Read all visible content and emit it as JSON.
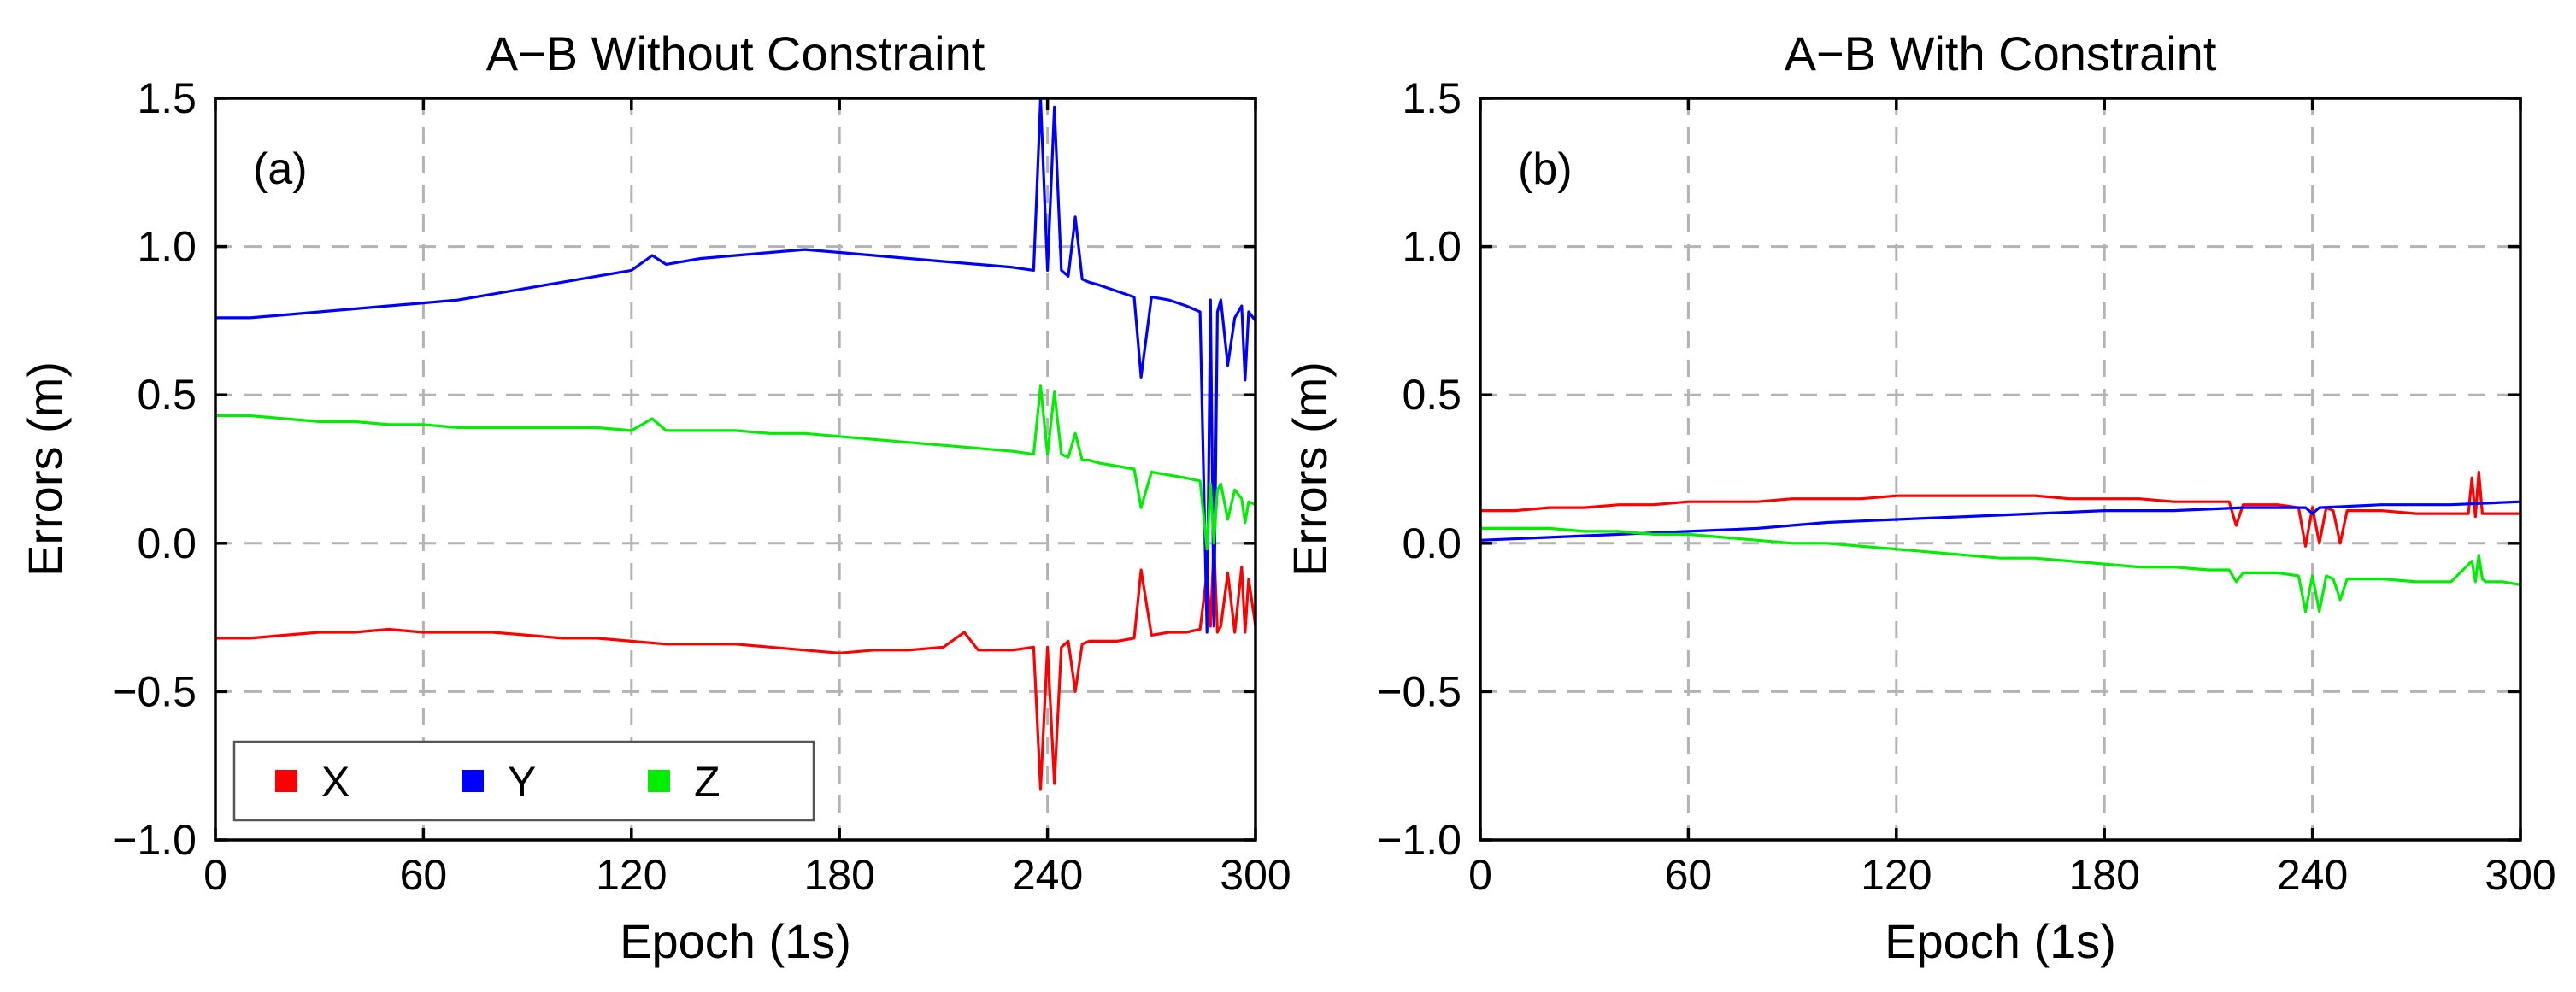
{
  "chart_data": [
    {
      "type": "line",
      "title": "A−B Without Constraint",
      "panel_label": "(a)",
      "xlabel": "Epoch (1s)",
      "ylabel": "Errors (m)",
      "xlim": [
        0,
        300
      ],
      "ylim": [
        -1.0,
        1.5
      ],
      "xticks": [
        0,
        60,
        120,
        180,
        240,
        300
      ],
      "xtick_labels": [
        "0",
        "60",
        "120",
        "180",
        "240",
        "300"
      ],
      "yticks": [
        -1.0,
        -0.5,
        0.0,
        0.5,
        1.0,
        1.5
      ],
      "ytick_labels": [
        "−1.0",
        "−0.5",
        "0.0",
        "0.5",
        "1.0",
        "1.5"
      ],
      "grid": true,
      "legend": {
        "position": "bottom-left",
        "entries": [
          {
            "label": "X",
            "color": "#ff0000"
          },
          {
            "label": "Y",
            "color": "#0000ff"
          },
          {
            "label": "Z",
            "color": "#00ee00"
          }
        ]
      },
      "series": [
        {
          "name": "X",
          "color": "#ff0000",
          "x": [
            0,
            10,
            20,
            30,
            40,
            50,
            60,
            70,
            80,
            90,
            100,
            110,
            120,
            130,
            140,
            150,
            160,
            170,
            180,
            190,
            200,
            210,
            216,
            220,
            230,
            236,
            238,
            240,
            242,
            244,
            246,
            248,
            250,
            252,
            255,
            260,
            265,
            267,
            270,
            275,
            280,
            284,
            286,
            287,
            288,
            289,
            290,
            292,
            294,
            296,
            297,
            298,
            300
          ],
          "y": [
            -0.32,
            -0.32,
            -0.31,
            -0.3,
            -0.3,
            -0.29,
            -0.3,
            -0.3,
            -0.3,
            -0.31,
            -0.32,
            -0.32,
            -0.33,
            -0.34,
            -0.34,
            -0.34,
            -0.35,
            -0.36,
            -0.37,
            -0.36,
            -0.36,
            -0.35,
            -0.3,
            -0.36,
            -0.36,
            -0.35,
            -0.83,
            -0.35,
            -0.81,
            -0.35,
            -0.33,
            -0.5,
            -0.34,
            -0.33,
            -0.33,
            -0.33,
            -0.32,
            -0.09,
            -0.31,
            -0.3,
            -0.3,
            -0.29,
            -0.1,
            -0.28,
            0.0,
            -0.3,
            -0.28,
            -0.1,
            -0.3,
            -0.08,
            -0.3,
            -0.12,
            -0.28
          ]
        },
        {
          "name": "Y",
          "color": "#0000ff",
          "x": [
            0,
            10,
            20,
            30,
            40,
            50,
            60,
            70,
            80,
            90,
            100,
            110,
            120,
            126,
            130,
            140,
            150,
            160,
            170,
            180,
            190,
            200,
            210,
            220,
            230,
            236,
            238,
            240,
            242,
            244,
            246,
            248,
            250,
            252,
            255,
            260,
            265,
            267,
            270,
            275,
            280,
            284,
            286,
            287,
            288,
            289,
            290,
            292,
            294,
            296,
            297,
            298,
            300
          ],
          "y": [
            0.76,
            0.76,
            0.77,
            0.78,
            0.79,
            0.8,
            0.81,
            0.82,
            0.84,
            0.86,
            0.88,
            0.9,
            0.92,
            0.97,
            0.94,
            0.96,
            0.97,
            0.98,
            0.99,
            0.98,
            0.97,
            0.96,
            0.95,
            0.94,
            0.93,
            0.92,
            1.5,
            0.92,
            1.47,
            0.92,
            0.9,
            1.1,
            0.89,
            0.88,
            0.87,
            0.85,
            0.83,
            0.56,
            0.83,
            0.82,
            0.8,
            0.78,
            -0.3,
            0.82,
            -0.28,
            0.78,
            0.82,
            0.6,
            0.76,
            0.8,
            0.55,
            0.78,
            0.75
          ]
        },
        {
          "name": "Z",
          "color": "#00ee00",
          "x": [
            0,
            10,
            20,
            30,
            40,
            50,
            60,
            70,
            80,
            90,
            100,
            110,
            120,
            126,
            130,
            140,
            150,
            160,
            170,
            180,
            190,
            200,
            210,
            220,
            230,
            236,
            238,
            240,
            242,
            244,
            246,
            248,
            250,
            252,
            255,
            260,
            265,
            267,
            270,
            275,
            280,
            284,
            286,
            287,
            288,
            289,
            290,
            292,
            294,
            296,
            297,
            298,
            300
          ],
          "y": [
            0.43,
            0.43,
            0.42,
            0.41,
            0.41,
            0.4,
            0.4,
            0.39,
            0.39,
            0.39,
            0.39,
            0.39,
            0.38,
            0.42,
            0.38,
            0.38,
            0.38,
            0.37,
            0.37,
            0.36,
            0.35,
            0.34,
            0.33,
            0.32,
            0.31,
            0.3,
            0.53,
            0.3,
            0.51,
            0.3,
            0.29,
            0.37,
            0.28,
            0.28,
            0.27,
            0.26,
            0.25,
            0.12,
            0.24,
            0.23,
            0.22,
            0.21,
            -0.02,
            0.2,
            0.0,
            0.18,
            0.2,
            0.08,
            0.18,
            0.15,
            0.07,
            0.14,
            0.13
          ]
        }
      ]
    },
    {
      "type": "line",
      "title": "A−B With Constraint",
      "panel_label": "(b)",
      "xlabel": "Epoch (1s)",
      "ylabel": "Errors (m)",
      "xlim": [
        0,
        300
      ],
      "ylim": [
        -1.0,
        1.5
      ],
      "xticks": [
        0,
        60,
        120,
        180,
        240,
        300
      ],
      "xtick_labels": [
        "0",
        "60",
        "120",
        "180",
        "240",
        "300"
      ],
      "yticks": [
        -1.0,
        -0.5,
        0.0,
        0.5,
        1.0,
        1.5
      ],
      "ytick_labels": [
        "−1.0",
        "−0.5",
        "0.0",
        "0.5",
        "1.0",
        "1.5"
      ],
      "grid": true,
      "series": [
        {
          "name": "X",
          "color": "#ff0000",
          "x": [
            0,
            10,
            20,
            30,
            40,
            50,
            60,
            70,
            80,
            90,
            100,
            110,
            120,
            130,
            140,
            150,
            160,
            170,
            180,
            190,
            200,
            210,
            216,
            218,
            220,
            230,
            236,
            238,
            240,
            242,
            244,
            246,
            248,
            250,
            260,
            270,
            280,
            285,
            286,
            287,
            288,
            289,
            290,
            295,
            300
          ],
          "y": [
            0.11,
            0.11,
            0.12,
            0.12,
            0.13,
            0.13,
            0.14,
            0.14,
            0.14,
            0.15,
            0.15,
            0.15,
            0.16,
            0.16,
            0.16,
            0.16,
            0.16,
            0.15,
            0.15,
            0.15,
            0.14,
            0.14,
            0.14,
            0.06,
            0.13,
            0.13,
            0.12,
            -0.01,
            0.12,
            0.0,
            0.12,
            0.11,
            0.0,
            0.11,
            0.11,
            0.1,
            0.1,
            0.1,
            0.22,
            0.09,
            0.24,
            0.1,
            0.1,
            0.1,
            0.1
          ]
        },
        {
          "name": "Y",
          "color": "#0000ff",
          "x": [
            0,
            20,
            40,
            60,
            80,
            100,
            120,
            140,
            160,
            180,
            200,
            220,
            238,
            240,
            242,
            260,
            280,
            300
          ],
          "y": [
            0.01,
            0.02,
            0.03,
            0.04,
            0.05,
            0.07,
            0.08,
            0.09,
            0.1,
            0.11,
            0.11,
            0.12,
            0.12,
            0.1,
            0.12,
            0.13,
            0.13,
            0.14
          ]
        },
        {
          "name": "Z",
          "color": "#00ee00",
          "x": [
            0,
            10,
            20,
            30,
            40,
            50,
            60,
            70,
            80,
            90,
            100,
            110,
            120,
            130,
            140,
            150,
            160,
            170,
            180,
            190,
            200,
            210,
            216,
            218,
            220,
            230,
            236,
            238,
            240,
            242,
            244,
            246,
            248,
            250,
            260,
            270,
            280,
            286,
            287,
            288,
            289,
            290,
            295,
            300
          ],
          "y": [
            0.05,
            0.05,
            0.05,
            0.04,
            0.04,
            0.03,
            0.03,
            0.02,
            0.01,
            0.0,
            0.0,
            -0.01,
            -0.02,
            -0.03,
            -0.04,
            -0.05,
            -0.05,
            -0.06,
            -0.07,
            -0.08,
            -0.08,
            -0.09,
            -0.09,
            -0.13,
            -0.1,
            -0.1,
            -0.11,
            -0.23,
            -0.11,
            -0.23,
            -0.11,
            -0.12,
            -0.19,
            -0.12,
            -0.12,
            -0.13,
            -0.13,
            -0.06,
            -0.13,
            -0.04,
            -0.12,
            -0.13,
            -0.13,
            -0.14
          ]
        }
      ]
    }
  ]
}
